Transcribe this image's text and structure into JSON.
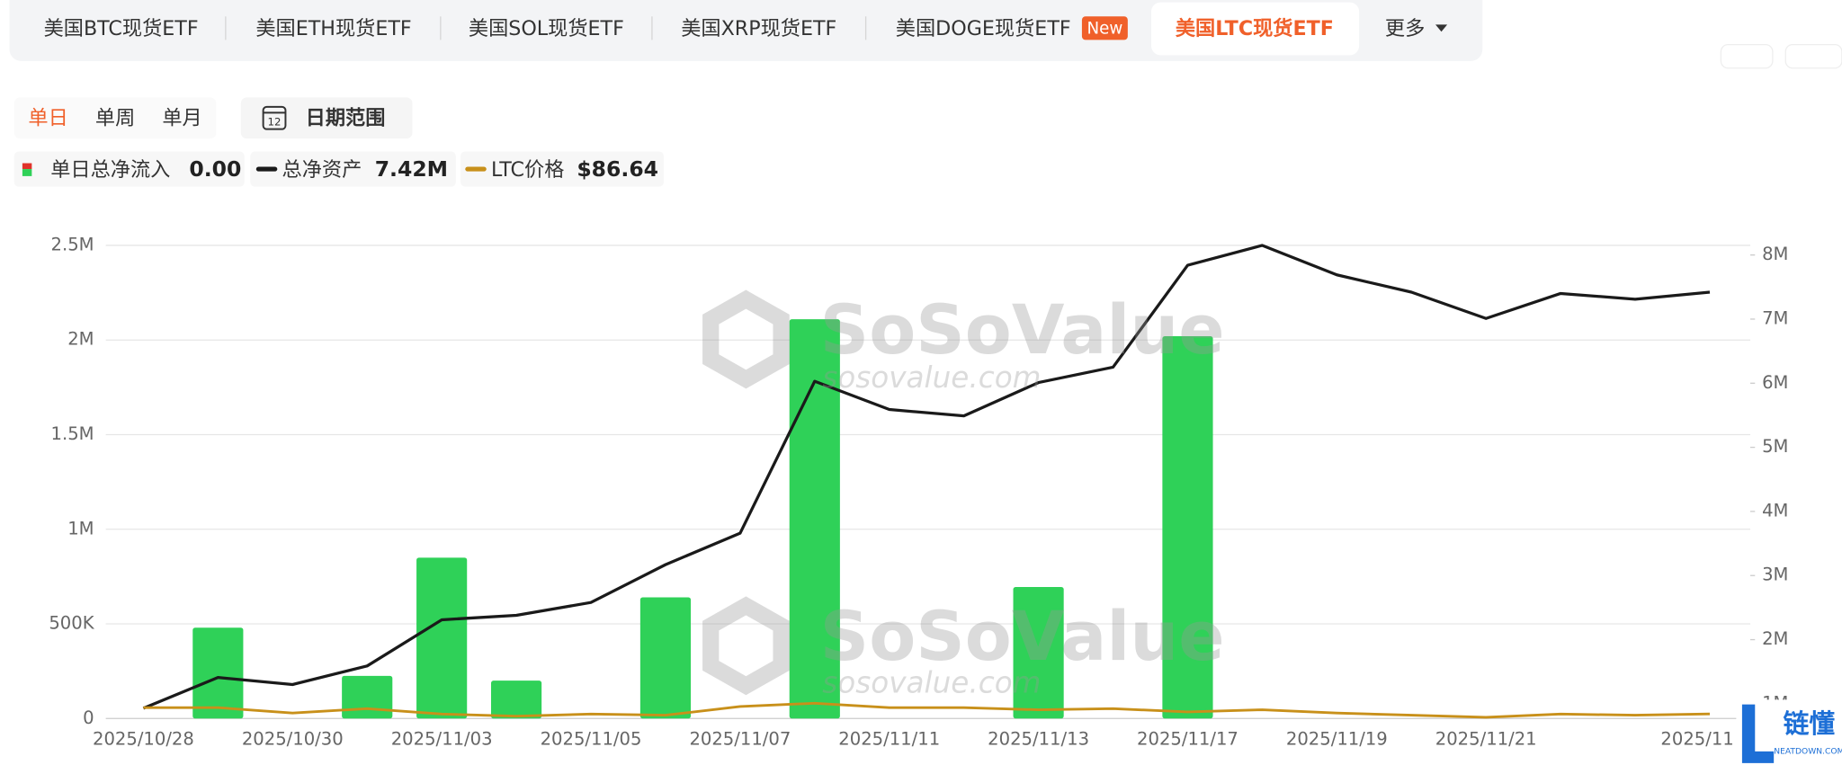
{
  "tabs": {
    "items": [
      "美国BTC现货ETF",
      "美国ETH现货ETF",
      "美国SOL现货ETF",
      "美国XRP现货ETF",
      "美国DOGE现货ETF",
      "美国LTC现货ETF",
      "更多"
    ],
    "badge": "New"
  },
  "periods": {
    "items": [
      "单日",
      "单周",
      "单月"
    ],
    "date_range": "日期范围",
    "calendar_day": "12"
  },
  "watermark": {
    "brand": "SoSoValue",
    "url": "sosovalue.com"
  },
  "logo": {
    "name": "链懂",
    "url": "NEATDOWN.COM"
  },
  "chart_data": {
    "type": "bar",
    "categories": [
      "2025/10/28",
      null,
      "2025/10/30",
      null,
      "2025/11/03",
      null,
      "2025/11/05",
      null,
      "2025/11/07",
      null,
      "2025/11/11",
      null,
      "2025/11/13",
      null,
      "2025/11/17",
      null,
      "2025/11/19",
      null,
      "2025/11/21",
      null,
      null,
      "2025/11"
    ],
    "series": [
      {
        "name": "单日总净流入",
        "legend_value": "0.00",
        "type": "bar",
        "color": "#2fd158",
        "values": [
          0,
          480000,
          0,
          225000,
          850000,
          200000,
          0,
          640000,
          0,
          2110000,
          0,
          0,
          695000,
          0,
          2020000,
          0,
          0,
          0,
          0,
          0,
          0,
          0
        ]
      },
      {
        "name": "总净资产",
        "legend_value": "7.42M",
        "type": "line",
        "axis": "y2",
        "color": "#1a1a1a",
        "values": [
          930000,
          1410000,
          1300000,
          1590000,
          2310000,
          2380000,
          2580000,
          3170000,
          3660000,
          6030000,
          5590000,
          5490000,
          6010000,
          6250000,
          7840000,
          8150000,
          7690000,
          7420000,
          7010000,
          7400000,
          7310000,
          7420000
        ]
      },
      {
        "name": "LTC价格",
        "legend_value": "$86.64",
        "type": "line",
        "color": "#c8901a",
        "values": [
          95.1,
          95.1,
          87.8,
          93.7,
          86.4,
          83.5,
          86.4,
          84.9,
          96.6,
          101,
          95.1,
          95.1,
          92.2,
          93.7,
          89.3,
          92.2,
          87.8,
          84.9,
          82,
          86.4,
          84.9,
          86.64
        ]
      }
    ],
    "ylim": [
      0,
      2500000
    ],
    "yticks": [
      0,
      {
        "value": 500000,
        "label": "500K"
      },
      {
        "value": 1000000,
        "label": "1M"
      },
      {
        "value": 1500000,
        "label": "1.5M"
      },
      {
        "value": 2000000,
        "label": "2M"
      },
      {
        "value": 2500000,
        "label": "2.5M"
      }
    ],
    "y2lim": [
      770000,
      8150000
    ],
    "y2ticks": [
      {
        "value": 1000000,
        "label": "1M"
      },
      {
        "value": 2000000,
        "label": "2M"
      },
      {
        "value": 3000000,
        "label": "3M"
      },
      {
        "value": 4000000,
        "label": "4M"
      },
      {
        "value": 5000000,
        "label": "5M"
      },
      {
        "value": 6000000,
        "label": "6M"
      },
      {
        "value": 7000000,
        "label": "7M"
      },
      {
        "value": 8000000,
        "label": "8M"
      }
    ],
    "grid": true
  }
}
